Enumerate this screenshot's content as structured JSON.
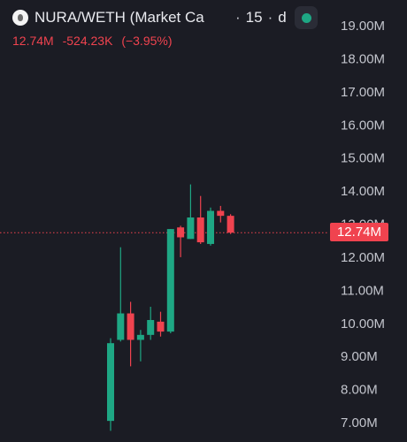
{
  "header": {
    "pair_title": "NURA/WETH (Market Ca",
    "separator": "·",
    "interval": "15",
    "source_abbrev": "d"
  },
  "quote": {
    "last": "12.74M",
    "change": "-524.23K",
    "change_pct": "(−3.95%)"
  },
  "colors": {
    "background": "#1b1c24",
    "up": "#1ea784",
    "down": "#f0434f",
    "axis_text": "#c3c5cd",
    "title_text": "#e8e9ee",
    "status": "#1ea784"
  },
  "icons": {
    "logo": "token-logo-icon",
    "status": "live-status-dot-icon"
  },
  "price_tag": "12.74M",
  "chart_data": {
    "type": "candlestick",
    "axis": {
      "position": "right",
      "unit": "M",
      "ticks": [
        "19.00M",
        "18.00M",
        "17.00M",
        "16.00M",
        "15.00M",
        "14.00M",
        "13.00M",
        "12.00M",
        "11.00M",
        "10.00M",
        "9.00M",
        "8.00M",
        "7.00M"
      ],
      "tick_values": [
        19,
        18,
        17,
        16,
        15,
        14,
        13,
        12,
        11,
        10,
        9,
        8,
        7
      ]
    },
    "grid": false,
    "last_price_line": 12.74,
    "candles": [
      {
        "open": 7.05,
        "high": 9.55,
        "low": 6.75,
        "close": 9.4
      },
      {
        "open": 9.5,
        "high": 12.3,
        "low": 9.45,
        "close": 10.3
      },
      {
        "open": 10.3,
        "high": 10.65,
        "low": 8.7,
        "close": 9.5
      },
      {
        "open": 9.5,
        "high": 9.8,
        "low": 8.85,
        "close": 9.65
      },
      {
        "open": 9.65,
        "high": 10.5,
        "low": 9.5,
        "close": 10.1
      },
      {
        "open": 10.05,
        "high": 10.35,
        "low": 9.6,
        "close": 9.75
      },
      {
        "open": 9.75,
        "high": 12.85,
        "low": 9.7,
        "close": 12.85
      },
      {
        "open": 12.9,
        "high": 12.95,
        "low": 12.0,
        "close": 12.6
      },
      {
        "open": 12.55,
        "high": 14.2,
        "low": 12.55,
        "close": 13.2
      },
      {
        "open": 13.2,
        "high": 13.85,
        "low": 12.4,
        "close": 12.45
      },
      {
        "open": 12.4,
        "high": 13.5,
        "low": 12.35,
        "close": 13.4
      },
      {
        "open": 13.4,
        "high": 13.55,
        "low": 13.05,
        "close": 13.25
      },
      {
        "open": 13.25,
        "high": 13.3,
        "low": 12.7,
        "close": 12.74
      }
    ]
  }
}
